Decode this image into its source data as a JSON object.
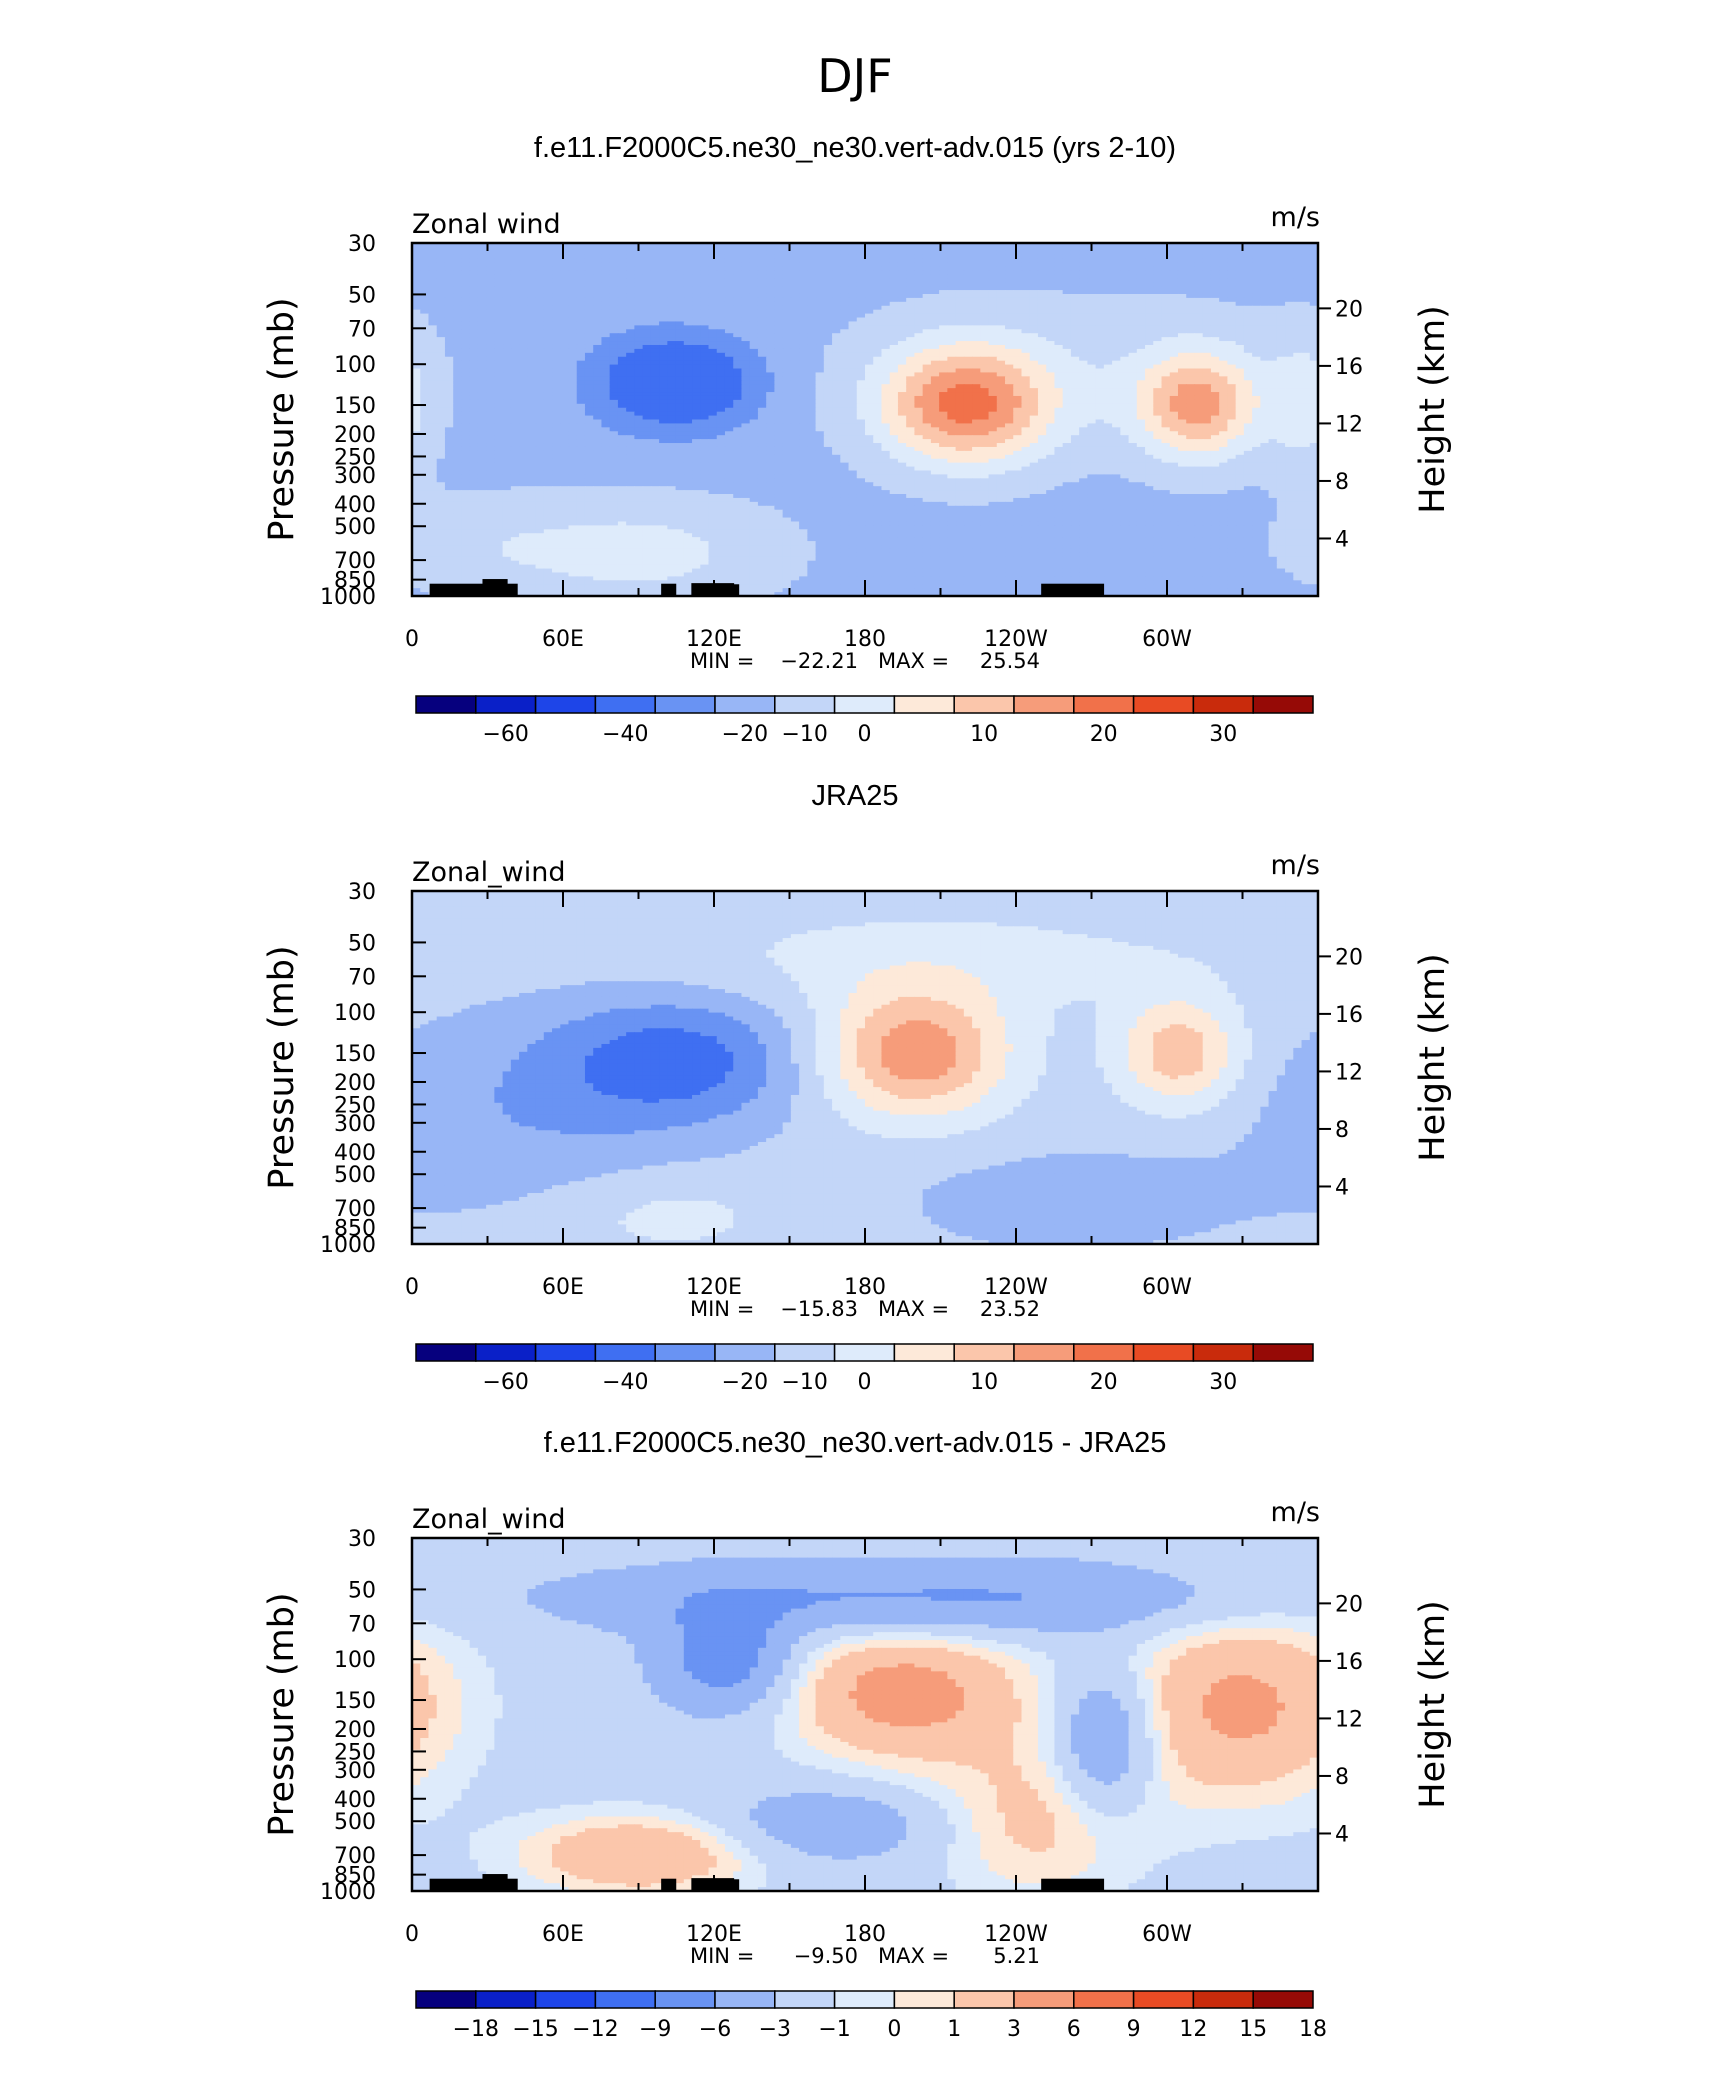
{
  "title": "DJF",
  "colors": {
    "field_palette": [
      "#06007e",
      "#0a20c8",
      "#1e45e8",
      "#3f6ff2",
      "#6993f3",
      "#98b6f6",
      "#c3d6f8",
      "#deebfb",
      "#fde9d9",
      "#fbc6ab",
      "#f69c7a",
      "#f1714a",
      "#e84b24",
      "#c92b0c",
      "#960a06"
    ],
    "diff_palette": [
      "#06007e",
      "#0a20c8",
      "#1e45e8",
      "#3f6ff2",
      "#6993f3",
      "#98b6f6",
      "#c3d6f8",
      "#deebfb",
      "#fde9d9",
      "#fbc6ab",
      "#f69c7a",
      "#f1714a",
      "#e84b24",
      "#c92b0c",
      "#960a06"
    ],
    "topography": "#000000"
  },
  "chart_data": [
    {
      "type": "contour",
      "title": "f.e11.F2000C5.ne30_ne30.vert-adv.015 (yrs 2-10)",
      "left_label": "Zonal wind",
      "units": "m/s",
      "ylabel": "Pressure (mb)",
      "ylabel_right": "Height (km)",
      "x_ticks": [
        "0",
        "60E",
        "120E",
        "180",
        "120W",
        "60W"
      ],
      "y_ticks": [
        "30",
        "50",
        "70",
        "100",
        "150",
        "200",
        "250",
        "300",
        "400",
        "500",
        "700",
        "850",
        "1000"
      ],
      "y_right_ticks": [
        "20",
        "16",
        "12",
        "8",
        "4"
      ],
      "stats": {
        "min_label": "MIN =",
        "min": "−22.21",
        "max_label": "MAX =",
        "max": "25.54"
      },
      "colorbar_labels": [
        "−60",
        "−40",
        "−20",
        "−10",
        "0",
        "10",
        "20",
        "30"
      ],
      "ylim": [
        1000,
        30
      ]
    },
    {
      "type": "contour",
      "title": "JRA25",
      "left_label": "Zonal_wind",
      "units": "m/s",
      "ylabel": "Pressure (mb)",
      "ylabel_right": "Height (km)",
      "x_ticks": [
        "0",
        "60E",
        "120E",
        "180",
        "120W",
        "60W"
      ],
      "y_ticks": [
        "30",
        "50",
        "70",
        "100",
        "150",
        "200",
        "250",
        "300",
        "400",
        "500",
        "700",
        "850",
        "1000"
      ],
      "y_right_ticks": [
        "20",
        "16",
        "12",
        "8",
        "4"
      ],
      "stats": {
        "min_label": "MIN =",
        "min": "−15.83",
        "max_label": "MAX =",
        "max": "23.52"
      },
      "colorbar_labels": [
        "−60",
        "−40",
        "−20",
        "−10",
        "0",
        "10",
        "20",
        "30"
      ],
      "ylim": [
        1000,
        30
      ]
    },
    {
      "type": "contour",
      "title": "f.e11.F2000C5.ne30_ne30.vert-adv.015 - JRA25",
      "left_label": "Zonal_wind",
      "units": "m/s",
      "ylabel": "Pressure (mb)",
      "ylabel_right": "Height (km)",
      "x_ticks": [
        "0",
        "60E",
        "120E",
        "180",
        "120W",
        "60W"
      ],
      "y_ticks": [
        "30",
        "50",
        "70",
        "100",
        "150",
        "200",
        "250",
        "300",
        "400",
        "500",
        "700",
        "850",
        "1000"
      ],
      "y_right_ticks": [
        "20",
        "16",
        "12",
        "8",
        "4"
      ],
      "stats": {
        "min_label": "MIN =",
        "min": "−9.50",
        "max_label": "MAX =",
        "max": "5.21"
      },
      "colorbar_labels": [
        "−18",
        "−15",
        "−12",
        "−9",
        "−6",
        "−3",
        "−1",
        "0",
        "1",
        "3",
        "6",
        "9",
        "12",
        "15",
        "18"
      ],
      "ylim": [
        1000,
        30
      ]
    }
  ]
}
